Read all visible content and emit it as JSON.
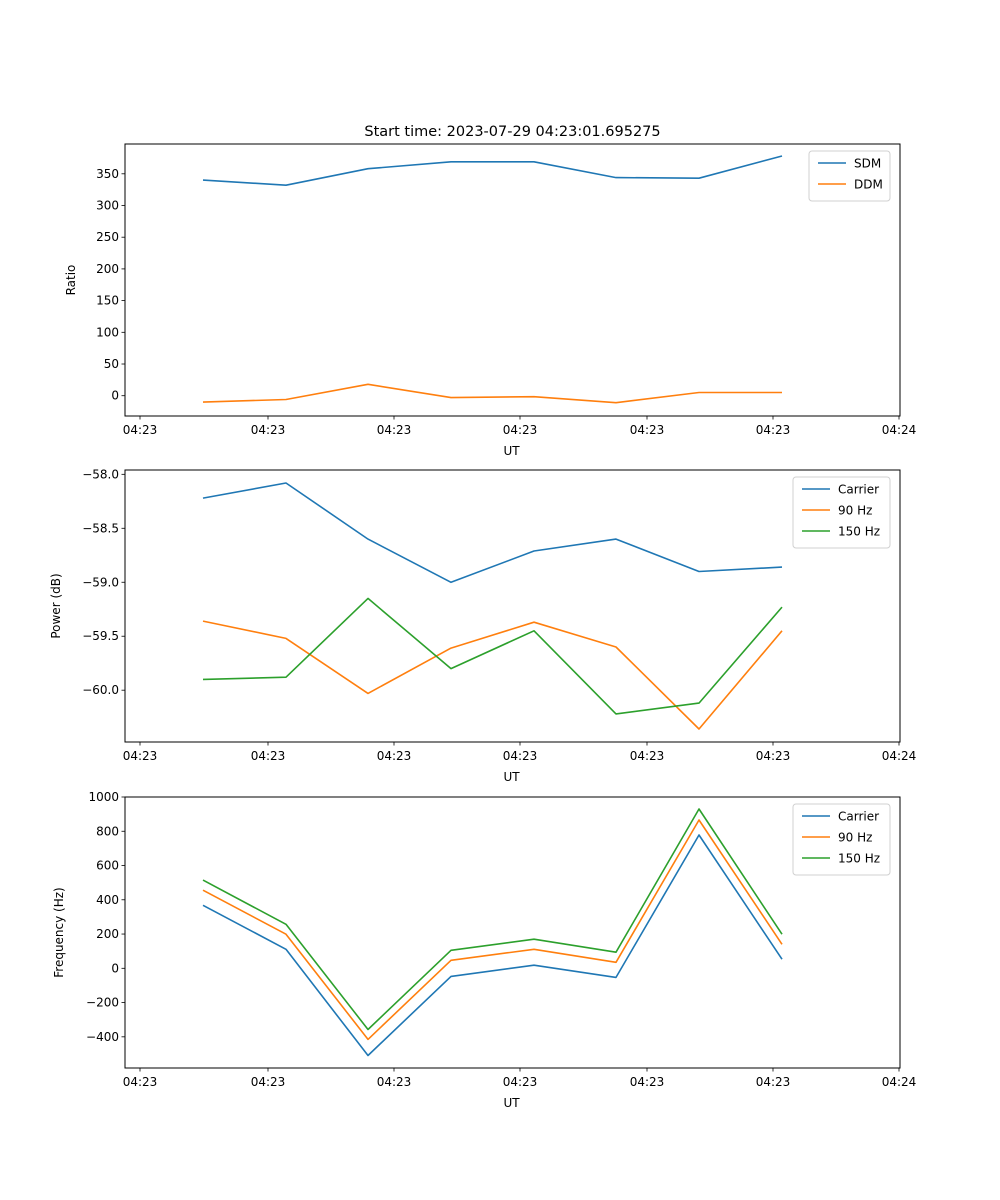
{
  "figure": {
    "title": "Start time: 2023-07-29 04:23:01.695275"
  },
  "chart_data": [
    {
      "type": "line",
      "title": "Start time: 2023-07-29 04:23:01.695275",
      "xlabel": "UT",
      "ylabel": "Ratio",
      "x_tick_labels": [
        "04:23",
        "04:23",
        "04:23",
        "04:23",
        "04:23",
        "04:23",
        "04:24"
      ],
      "x": [
        1,
        2,
        3,
        4,
        5,
        6,
        7,
        8
      ],
      "xlim": [
        0.24,
        9.45
      ],
      "ylim": [
        -32,
        397
      ],
      "y_ticks": [
        0,
        50,
        100,
        150,
        200,
        250,
        300,
        350
      ],
      "y_tick_labels": [
        "0",
        "50",
        "100",
        "150",
        "200",
        "250",
        "300",
        "350"
      ],
      "legend": "top-right",
      "grid": false,
      "series": [
        {
          "name": "SDM",
          "color": "#1f77b4",
          "values": [
            340,
            332,
            358,
            369,
            369,
            344,
            343,
            378
          ]
        },
        {
          "name": "DDM",
          "color": "#ff7f0e",
          "values": [
            -10,
            -6,
            18,
            -3,
            -1.5,
            -11,
            5,
            5
          ]
        }
      ]
    },
    {
      "type": "line",
      "title": "",
      "xlabel": "UT",
      "ylabel": "Power (dB)",
      "x_tick_labels": [
        "04:23",
        "04:23",
        "04:23",
        "04:23",
        "04:23",
        "04:23",
        "04:24"
      ],
      "x": [
        1,
        2,
        3,
        4,
        5,
        6,
        7,
        8
      ],
      "xlim": [
        0.24,
        9.45
      ],
      "ylim": [
        -60.48,
        -57.96
      ],
      "y_ticks": [
        -58.0,
        -58.5,
        -59.0,
        -59.5,
        -60.0
      ],
      "y_tick_labels": [
        "−58.0",
        "−58.5",
        "−59.0",
        "−59.5",
        "−60.0"
      ],
      "legend": "top-right",
      "grid": false,
      "series": [
        {
          "name": "Carrier",
          "color": "#1f77b4",
          "values": [
            -58.22,
            -58.08,
            -58.6,
            -59.0,
            -58.71,
            -58.6,
            -58.9,
            -58.86
          ]
        },
        {
          "name": "90 Hz",
          "color": "#ff7f0e",
          "values": [
            -59.36,
            -59.52,
            -60.03,
            -59.61,
            -59.37,
            -59.6,
            -60.36,
            -59.45
          ]
        },
        {
          "name": "150 Hz",
          "color": "#2ca02c",
          "values": [
            -59.9,
            -59.88,
            -59.15,
            -59.8,
            -59.45,
            -60.22,
            -60.12,
            -59.23
          ]
        }
      ]
    },
    {
      "type": "line",
      "title": "",
      "xlabel": "UT",
      "ylabel": "Frequency (Hz)",
      "x_tick_labels": [
        "04:23",
        "04:23",
        "04:23",
        "04:23",
        "04:23",
        "04:23",
        "04:24"
      ],
      "x": [
        1,
        2,
        3,
        4,
        5,
        6,
        7,
        8
      ],
      "xlim": [
        0.24,
        9.45
      ],
      "ylim": [
        -582,
        1000
      ],
      "y_ticks": [
        1000,
        800,
        600,
        400,
        200,
        0,
        -200,
        -400
      ],
      "y_tick_labels": [
        "1000",
        "800",
        "600",
        "400",
        "200",
        "0",
        "−200",
        "−400"
      ],
      "legend": "top-right",
      "grid": false,
      "series": [
        {
          "name": "Carrier",
          "color": "#1f77b4",
          "values": [
            368,
            111,
            -509,
            -47,
            18,
            -53,
            778,
            53
          ]
        },
        {
          "name": "90 Hz",
          "color": "#ff7f0e",
          "values": [
            456,
            199,
            -415,
            47,
            111,
            35,
            866,
            140
          ]
        },
        {
          "name": "150 Hz",
          "color": "#2ca02c",
          "values": [
            515,
            257,
            -357,
            105,
            170,
            94,
            930,
            199
          ]
        }
      ]
    }
  ]
}
